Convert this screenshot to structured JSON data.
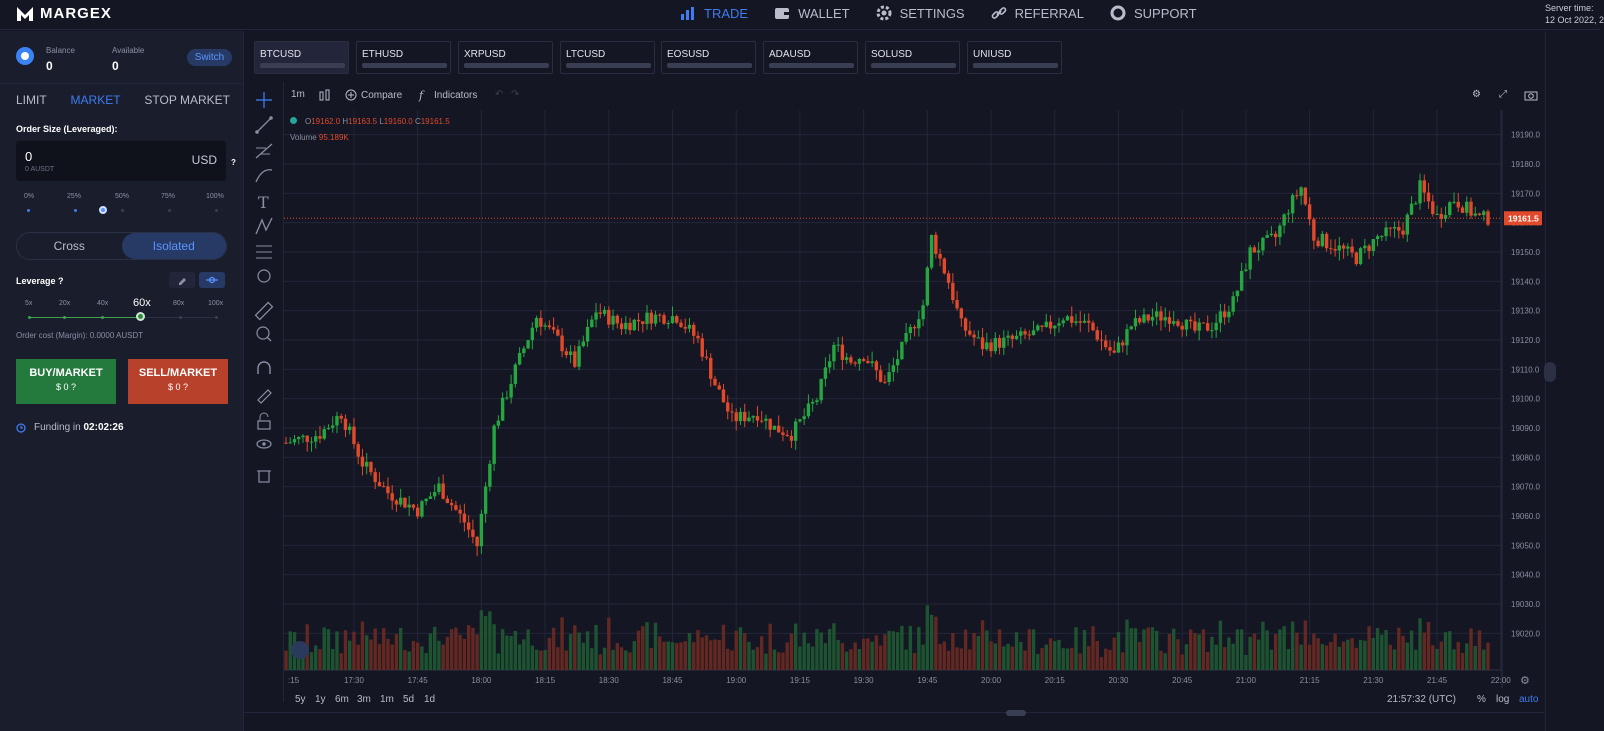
{
  "app": {
    "brand": "MARGEX"
  },
  "nav": [
    {
      "label": "TRADE",
      "icon": "bar-chart-icon",
      "active": true
    },
    {
      "label": "WALLET",
      "icon": "wallet-icon",
      "active": false
    },
    {
      "label": "SETTINGS",
      "icon": "gear-icon",
      "active": false
    },
    {
      "label": "REFERRAL",
      "icon": "link-icon",
      "active": false
    },
    {
      "label": "SUPPORT",
      "icon": "lifebuoy-icon",
      "active": false
    }
  ],
  "server": {
    "label": "Server time:",
    "value": "12 Oct 2022, 2"
  },
  "account": {
    "balance_label": "Balance",
    "balance": "0",
    "available_label": "Available",
    "available": "0",
    "switch_label": "Switch"
  },
  "order_tabs": [
    {
      "label": "LIMIT",
      "active": false
    },
    {
      "label": "MARKET",
      "active": true
    },
    {
      "label": "STOP MARKET",
      "active": false
    }
  ],
  "order_size": {
    "label": "Order Size (Leveraged):",
    "value": "0",
    "sub": "0 AUSDT",
    "currency": "USD",
    "help": "?",
    "percent_marks": [
      "0%",
      "25%",
      "50%",
      "75%",
      "100%"
    ],
    "percent_selected": 50
  },
  "margin_mode": {
    "options": [
      "Cross",
      "Isolated"
    ],
    "selected": "Isolated"
  },
  "leverage": {
    "label": "Leverage",
    "help": "?",
    "marks": [
      "5x",
      "20x",
      "40x",
      "60x",
      "80x",
      "100x"
    ],
    "selected": "60x"
  },
  "order_cost": "Order cost (Margin): 0.0000 AUSDT",
  "buy": {
    "label": "BUY/MARKET",
    "amount": "$ 0",
    "help": "?"
  },
  "sell": {
    "label": "SELL/MARKET",
    "amount": "$ 0",
    "help": "?"
  },
  "funding": {
    "label": "Funding in",
    "value": "02:02:26"
  },
  "markets": [
    {
      "name": "BTCUSD",
      "active": true
    },
    {
      "name": "ETHUSD",
      "active": false
    },
    {
      "name": "XRPUSD",
      "active": false
    },
    {
      "name": "LTCUSD",
      "active": false
    },
    {
      "name": "EOSUSD",
      "active": false
    },
    {
      "name": "ADAUSD",
      "active": false
    },
    {
      "name": "SOLUSD",
      "active": false
    },
    {
      "name": "UNIUSD",
      "active": false
    }
  ],
  "chart_toolbar": {
    "interval": "1m",
    "compare": "Compare",
    "indicators": "Indicators"
  },
  "legend": {
    "o_label": "O",
    "o": "19162.0",
    "h_label": "H",
    "h": "19163.5",
    "l_label": "L",
    "l": "19160.0",
    "c_label": "C",
    "c": "19161.5",
    "volume_label": "Volume",
    "volume": "95.189K"
  },
  "bottom": {
    "ranges": [
      "5y",
      "1y",
      "6m",
      "3m",
      "1m",
      "5d",
      "1d"
    ],
    "clock": "21:57:32 (UTC)",
    "pct": "%",
    "log": "log",
    "auto": "auto"
  },
  "colors": {
    "up": "#26a641",
    "down": "#e04a2a",
    "accent": "#3e7cf0",
    "bg": "#141623",
    "panel": "#1a1d2c"
  },
  "chart_data": {
    "type": "candlestick",
    "symbol": "BTCUSD",
    "interval": "1m",
    "last_price": 19161.5,
    "ylim": [
      19015,
      19195
    ],
    "y_ticks": [
      19190,
      19180,
      19170,
      19160,
      19150,
      19140,
      19130,
      19120,
      19110,
      19100,
      19090,
      19080,
      19070,
      19060,
      19050,
      19040,
      19030,
      19020
    ],
    "x_ticks": [
      ":15",
      "17:30",
      "17:45",
      "18:00",
      "18:15",
      "18:30",
      "18:45",
      "19:00",
      "19:15",
      "19:30",
      "19:45",
      "20:00",
      "20:15",
      "20:30",
      "20:45",
      "21:00",
      "21:15",
      "21:30",
      "21:45",
      "22:00"
    ],
    "close_path": [
      {
        "t": "17:14",
        "c": 19085
      },
      {
        "t": "17:22",
        "c": 19088
      },
      {
        "t": "17:27",
        "c": 19095
      },
      {
        "t": "17:32",
        "c": 19078
      },
      {
        "t": "17:38",
        "c": 19068
      },
      {
        "t": "17:45",
        "c": 19062
      },
      {
        "t": "17:50",
        "c": 19070
      },
      {
        "t": "17:56",
        "c": 19058
      },
      {
        "t": "17:59",
        "c": 19050
      },
      {
        "t": "18:03",
        "c": 19090
      },
      {
        "t": "18:08",
        "c": 19110
      },
      {
        "t": "18:13",
        "c": 19128
      },
      {
        "t": "18:18",
        "c": 19120
      },
      {
        "t": "18:22",
        "c": 19112
      },
      {
        "t": "18:27",
        "c": 19130
      },
      {
        "t": "18:33",
        "c": 19125
      },
      {
        "t": "18:40",
        "c": 19128
      },
      {
        "t": "18:46",
        "c": 19128
      },
      {
        "t": "18:51",
        "c": 19120
      },
      {
        "t": "18:55",
        "c": 19105
      },
      {
        "t": "18:59",
        "c": 19093
      },
      {
        "t": "19:05",
        "c": 19095
      },
      {
        "t": "19:09",
        "c": 19090
      },
      {
        "t": "19:13",
        "c": 19088
      },
      {
        "t": "19:19",
        "c": 19100
      },
      {
        "t": "19:23",
        "c": 19118
      },
      {
        "t": "19:27",
        "c": 19113
      },
      {
        "t": "19:30",
        "c": 19115
      },
      {
        "t": "19:35",
        "c": 19105
      },
      {
        "t": "19:40",
        "c": 19120
      },
      {
        "t": "19:44",
        "c": 19132
      },
      {
        "t": "19:46",
        "c": 19155
      },
      {
        "t": "19:50",
        "c": 19140
      },
      {
        "t": "19:53",
        "c": 19125
      },
      {
        "t": "19:58",
        "c": 19118
      },
      {
        "t": "20:05",
        "c": 19120
      },
      {
        "t": "20:12",
        "c": 19123
      },
      {
        "t": "20:17",
        "c": 19128
      },
      {
        "t": "20:23",
        "c": 19125
      },
      {
        "t": "20:27",
        "c": 19118
      },
      {
        "t": "20:29",
        "c": 19115
      },
      {
        "t": "20:33",
        "c": 19125
      },
      {
        "t": "20:38",
        "c": 19128
      },
      {
        "t": "20:43",
        "c": 19128
      },
      {
        "t": "20:48",
        "c": 19123
      },
      {
        "t": "20:52",
        "c": 19125
      },
      {
        "t": "20:57",
        "c": 19133
      },
      {
        "t": "21:01",
        "c": 19150
      },
      {
        "t": "21:07",
        "c": 19155
      },
      {
        "t": "21:10",
        "c": 19165
      },
      {
        "t": "21:13",
        "c": 19172
      },
      {
        "t": "21:16",
        "c": 19155
      },
      {
        "t": "21:21",
        "c": 19152
      },
      {
        "t": "21:26",
        "c": 19148
      },
      {
        "t": "21:31",
        "c": 19155
      },
      {
        "t": "21:37",
        "c": 19158
      },
      {
        "t": "21:41",
        "c": 19172
      },
      {
        "t": "21:45",
        "c": 19162
      },
      {
        "t": "21:49",
        "c": 19168
      },
      {
        "t": "21:55",
        "c": 19161.5
      }
    ]
  }
}
